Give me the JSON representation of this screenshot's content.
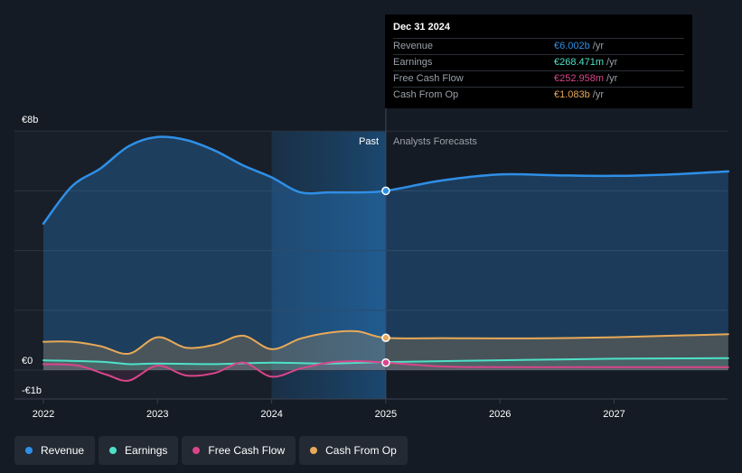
{
  "chart_data": {
    "type": "area",
    "title": "",
    "xlabel": "",
    "ylabel": "",
    "y_unit_labels": {
      "top": "€8b",
      "zero": "€0",
      "bottom": "-€1b"
    },
    "ylim": [
      -1,
      8
    ],
    "xlim": [
      2022,
      2028
    ],
    "x_ticks": [
      {
        "value": 2022,
        "label": "2022"
      },
      {
        "value": 2023,
        "label": "2023"
      },
      {
        "value": 2024,
        "label": "2024"
      },
      {
        "value": 2025,
        "label": "2025"
      },
      {
        "value": 2026,
        "label": "2026"
      },
      {
        "value": 2027,
        "label": "2027"
      }
    ],
    "grid_values": [
      8,
      6,
      4,
      2,
      0
    ],
    "divider_x": 2025,
    "highlight_start_x": 2024,
    "past_label": "Past",
    "forecast_label": "Analysts Forecasts",
    "series": [
      {
        "name": "Revenue",
        "color": "#2f8fe6",
        "points": [
          [
            2022,
            4.9
          ],
          [
            2022.25,
            6.15
          ],
          [
            2022.5,
            6.75
          ],
          [
            2022.75,
            7.5
          ],
          [
            2023,
            7.8
          ],
          [
            2023.25,
            7.7
          ],
          [
            2023.5,
            7.35
          ],
          [
            2023.75,
            6.85
          ],
          [
            2024,
            6.45
          ],
          [
            2024.25,
            5.95
          ],
          [
            2024.5,
            5.95
          ],
          [
            2024.75,
            5.95
          ],
          [
            2025,
            6.0
          ],
          [
            2025.5,
            6.35
          ],
          [
            2026,
            6.55
          ],
          [
            2026.5,
            6.52
          ],
          [
            2027,
            6.5
          ],
          [
            2027.5,
            6.55
          ],
          [
            2028,
            6.65
          ]
        ]
      },
      {
        "name": "Earnings",
        "color": "#4fe0c8",
        "points": [
          [
            2022,
            0.33
          ],
          [
            2022.5,
            0.28
          ],
          [
            2022.75,
            0.2
          ],
          [
            2023,
            0.22
          ],
          [
            2023.5,
            0.2
          ],
          [
            2024,
            0.25
          ],
          [
            2024.5,
            0.22
          ],
          [
            2025,
            0.27
          ],
          [
            2026,
            0.33
          ],
          [
            2027,
            0.38
          ],
          [
            2028,
            0.4
          ]
        ]
      },
      {
        "name": "Free Cash Flow",
        "color": "#d9458a",
        "points": [
          [
            2022,
            0.2
          ],
          [
            2022.3,
            0.15
          ],
          [
            2022.55,
            -0.15
          ],
          [
            2022.75,
            -0.35
          ],
          [
            2023,
            0.15
          ],
          [
            2023.25,
            -0.18
          ],
          [
            2023.5,
            -0.1
          ],
          [
            2023.75,
            0.25
          ],
          [
            2024,
            -0.22
          ],
          [
            2024.25,
            0.05
          ],
          [
            2024.5,
            0.25
          ],
          [
            2024.75,
            0.3
          ],
          [
            2025,
            0.25
          ],
          [
            2025.5,
            0.12
          ],
          [
            2026,
            0.1
          ],
          [
            2027,
            0.1
          ],
          [
            2028,
            0.1
          ]
        ]
      },
      {
        "name": "Cash From Op",
        "color": "#e8a958",
        "points": [
          [
            2022,
            0.95
          ],
          [
            2022.25,
            0.95
          ],
          [
            2022.5,
            0.8
          ],
          [
            2022.75,
            0.55
          ],
          [
            2023,
            1.1
          ],
          [
            2023.25,
            0.75
          ],
          [
            2023.5,
            0.85
          ],
          [
            2023.75,
            1.15
          ],
          [
            2024,
            0.7
          ],
          [
            2024.25,
            1.05
          ],
          [
            2024.5,
            1.25
          ],
          [
            2024.75,
            1.3
          ],
          [
            2025,
            1.08
          ],
          [
            2025.5,
            1.07
          ],
          [
            2026,
            1.06
          ],
          [
            2026.5,
            1.07
          ],
          [
            2027,
            1.1
          ],
          [
            2027.5,
            1.15
          ],
          [
            2028,
            1.2
          ]
        ]
      }
    ],
    "markers": [
      {
        "series": "Revenue",
        "x": 2025,
        "y": 6.0
      },
      {
        "series": "Cash From Op",
        "x": 2025,
        "y": 1.08
      },
      {
        "series": "Free Cash Flow",
        "x": 2025,
        "y": 0.25
      }
    ]
  },
  "tooltip": {
    "date": "Dec 31 2024",
    "unit": "/yr",
    "rows": [
      {
        "label": "Revenue",
        "value": "€6.002b",
        "color": "#2f8fe6"
      },
      {
        "label": "Earnings",
        "value": "€268.471m",
        "color": "#4fe0c8"
      },
      {
        "label": "Free Cash Flow",
        "value": "€252.958m",
        "color": "#d9458a"
      },
      {
        "label": "Cash From Op",
        "value": "€1.083b",
        "color": "#e8a958"
      }
    ]
  },
  "legend": [
    {
      "label": "Revenue",
      "color": "#2f8fe6"
    },
    {
      "label": "Earnings",
      "color": "#4fe0c8"
    },
    {
      "label": "Free Cash Flow",
      "color": "#d9458a"
    },
    {
      "label": "Cash From Op",
      "color": "#e8a958"
    }
  ]
}
